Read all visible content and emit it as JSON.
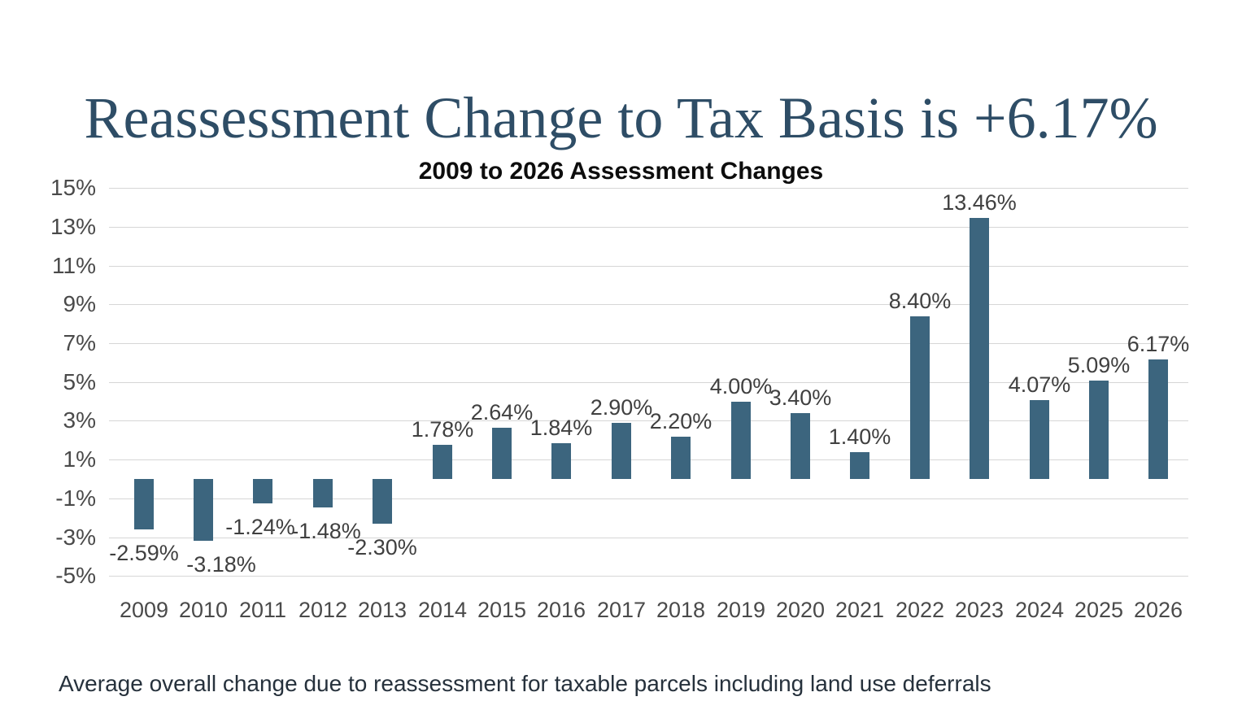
{
  "page": {
    "title": "Reassessment Change to Tax Basis is +6.17%",
    "caption": "Average overall change due to reassessment for taxable parcels including land use deferrals"
  },
  "colors": {
    "title_text": "#2E4D66",
    "bar": "#3C657E",
    "gridline": "#D6D6D6",
    "axis_text": "#4A4A4A",
    "data_label_text": "#404040",
    "chart_title_text": "#0D0D0D",
    "caption_text": "#26313C"
  },
  "chart_data": {
    "type": "bar",
    "title": "2009 to 2026 Assessment Changes",
    "xlabel": "",
    "ylabel": "",
    "categories": [
      "2009",
      "2010",
      "2011",
      "2012",
      "2013",
      "2014",
      "2015",
      "2016",
      "2017",
      "2018",
      "2019",
      "2020",
      "2021",
      "2022",
      "2023",
      "2024",
      "2025",
      "2026"
    ],
    "values": [
      -2.59,
      -3.18,
      -1.24,
      -1.48,
      -2.3,
      1.78,
      2.64,
      1.84,
      2.9,
      2.2,
      4.0,
      3.4,
      1.4,
      8.4,
      13.46,
      4.07,
      5.09,
      6.17
    ],
    "data_labels": [
      "-2.59%",
      "-3.18%",
      "-1.24%",
      "-1.48%",
      "-2.30%",
      "1.78%",
      "2.64%",
      "1.84%",
      "2.90%",
      "2.20%",
      "4.00%",
      "3.40%",
      "1.40%",
      "8.40%",
      "13.46%",
      "4.07%",
      "5.09%",
      "6.17%"
    ],
    "y_ticks": [
      "15%",
      "13%",
      "11%",
      "9%",
      "7%",
      "5%",
      "3%",
      "1%",
      "-1%",
      "-3%",
      "-5%"
    ],
    "y_tick_values": [
      15,
      13,
      11,
      9,
      7,
      5,
      3,
      1,
      -1,
      -3,
      -5
    ],
    "ylim": [
      -5,
      15
    ],
    "grid": "horizontal",
    "legend": "none",
    "data_label_position": "outside-end"
  }
}
